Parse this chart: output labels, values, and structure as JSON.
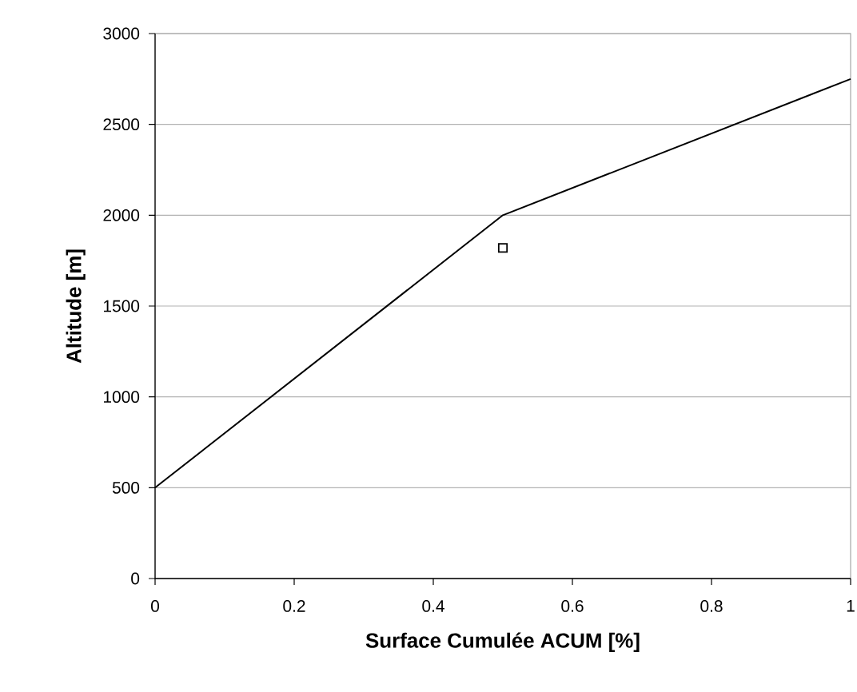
{
  "chart_data": {
    "type": "line",
    "xlabel": "Surface Cumulée ACUM [%]",
    "ylabel": "Altitude [m]",
    "xlim": [
      0,
      1
    ],
    "ylim": [
      0,
      3000
    ],
    "xticks": [
      0,
      {
        "value": 0.2,
        "label": "0.2"
      },
      {
        "value": 0.4,
        "label": "0.4"
      },
      {
        "value": 0.6,
        "label": "0.6"
      },
      {
        "value": 0.8,
        "label": "0.8"
      },
      1
    ],
    "yticks": [
      0,
      500,
      1000,
      1500,
      2000,
      2500,
      3000
    ],
    "grid": "y",
    "series": [
      {
        "color": "#000000",
        "x": [
          0,
          0.5,
          1
        ],
        "values": [
          500,
          2000,
          2750
        ],
        "marker": "none",
        "line_style": "solid"
      },
      {
        "type": "scatter",
        "color": "#000000",
        "x": [
          0.5
        ],
        "values": [
          1820
        ],
        "marker": "square"
      }
    ]
  }
}
